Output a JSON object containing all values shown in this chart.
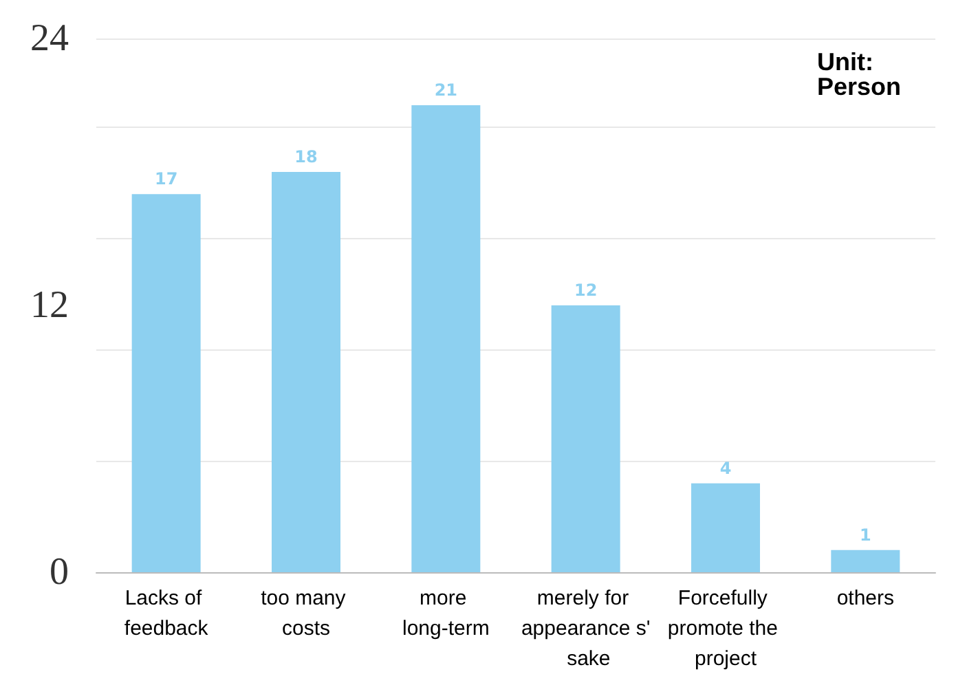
{
  "chart_data": {
    "type": "bar",
    "categories": [
      "Lacks of feedback",
      "too many costs",
      "more long-term",
      "merely for appearance s' sake",
      "Forcefully promote the project",
      "others"
    ],
    "values": [
      17,
      18,
      21,
      12,
      4,
      1
    ],
    "color": "#8dd0f0",
    "ylim": [
      0,
      24
    ],
    "yticks": [
      0,
      12,
      24
    ],
    "grid": "y",
    "data_labels": true,
    "annotations": [
      "Unit: Person"
    ]
  }
}
